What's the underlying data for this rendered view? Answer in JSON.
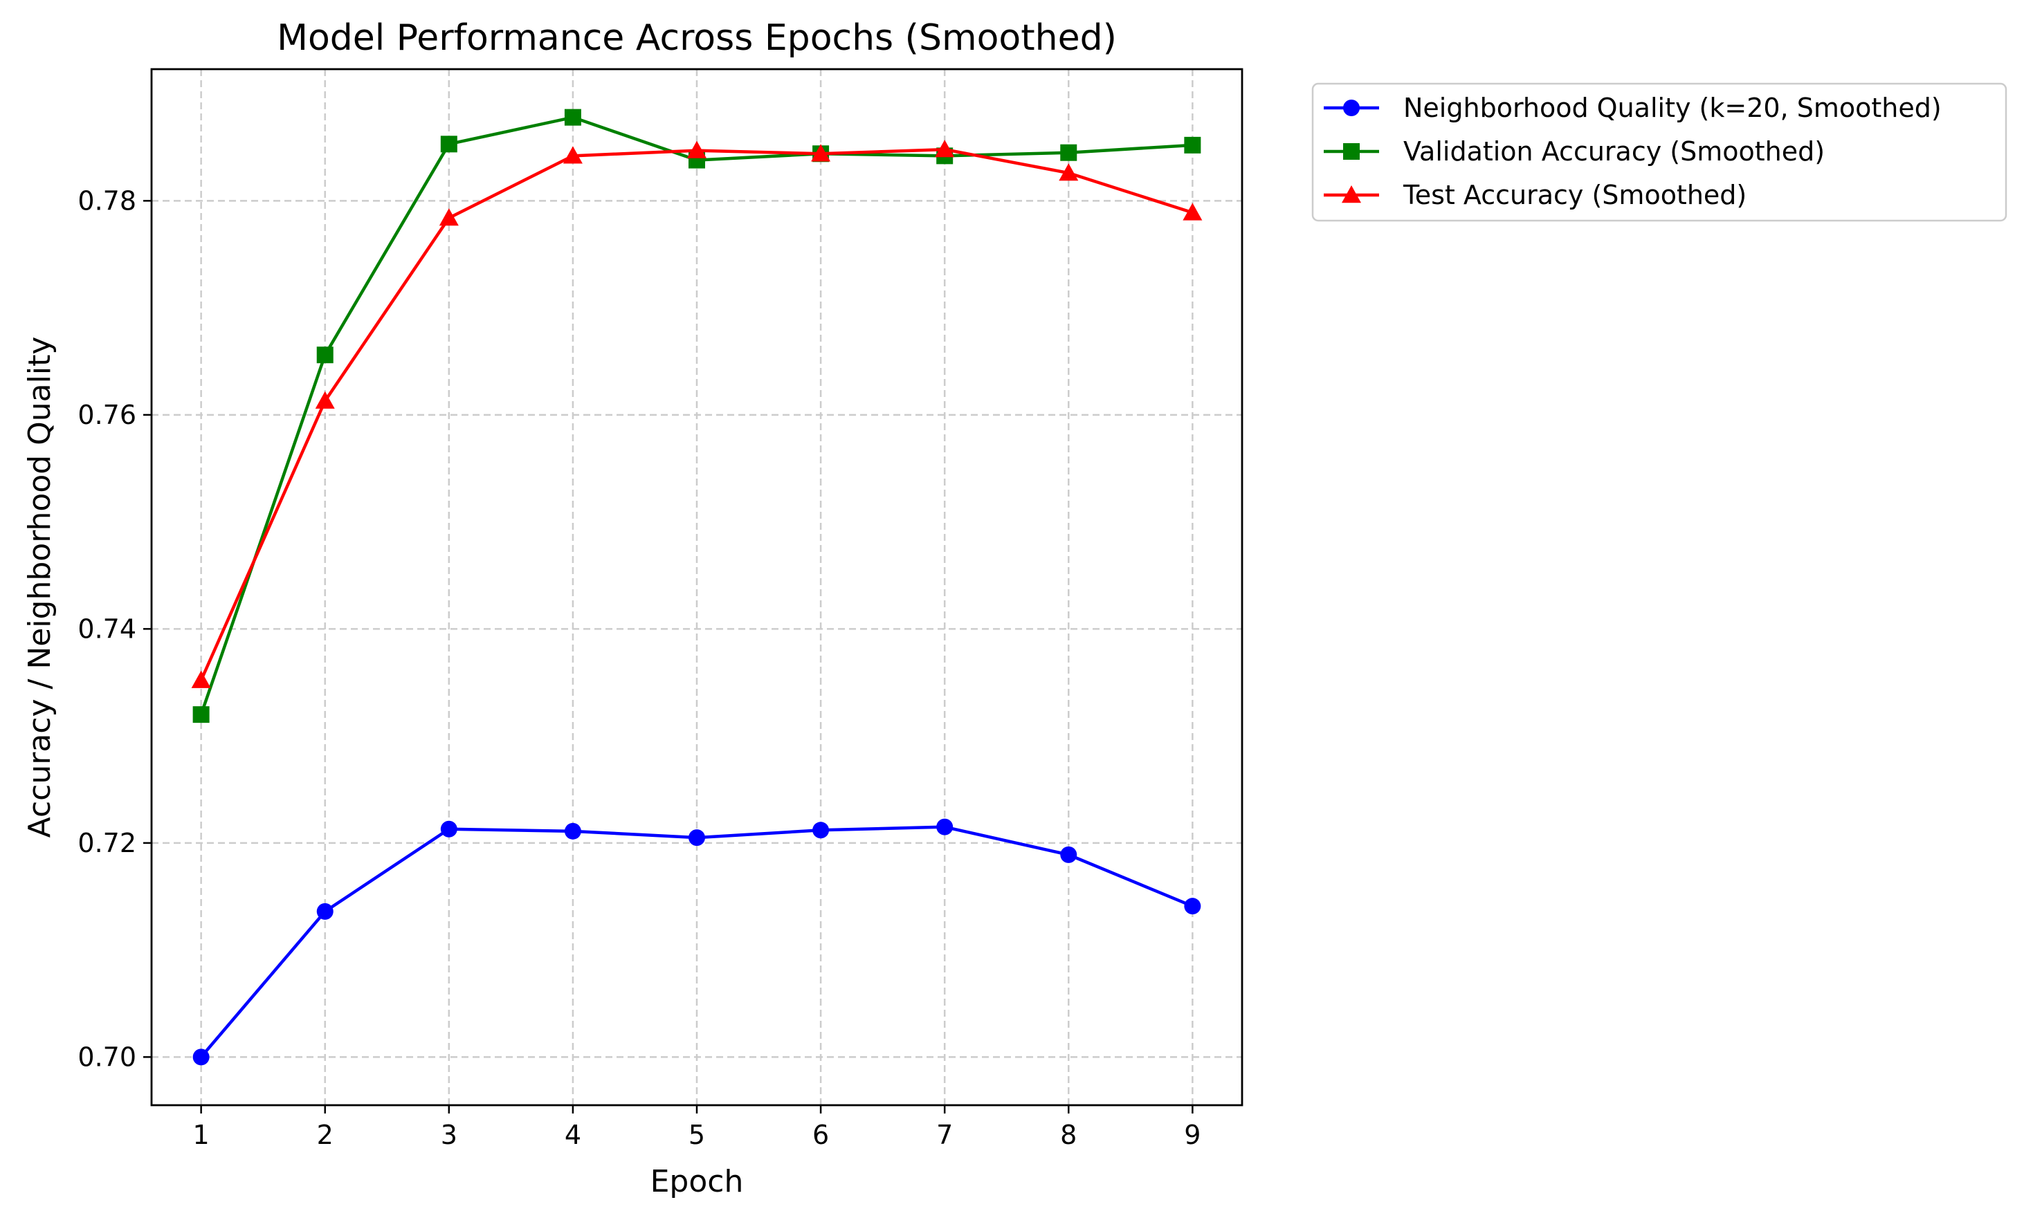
{
  "chart_data": {
    "type": "line",
    "title": "Model Performance Across Epochs (Smoothed)",
    "xlabel": "Epoch",
    "ylabel": "Accuracy / Neighborhood Quality",
    "x": [
      1,
      2,
      3,
      4,
      5,
      6,
      7,
      8,
      9
    ],
    "x_ticks": [
      "1",
      "2",
      "3",
      "4",
      "5",
      "6",
      "7",
      "8",
      "9"
    ],
    "xlim": [
      0.6,
      9.4
    ],
    "ylim": [
      0.6955,
      0.7923
    ],
    "y_ticks": [
      0.7,
      0.72,
      0.74,
      0.76,
      0.78
    ],
    "y_tick_labels": [
      "0.70",
      "0.72",
      "0.74",
      "0.76",
      "0.78"
    ],
    "grid": true,
    "legend_position": "outside-top-right",
    "series": [
      {
        "name": "Neighborhood Quality (k=20, Smoothed)",
        "color": "#0000ff",
        "marker": "circle",
        "values": [
          0.7,
          0.7136,
          0.7213,
          0.7211,
          0.7205,
          0.7212,
          0.7215,
          0.7189,
          0.7141
        ]
      },
      {
        "name": "Validation Accuracy (Smoothed)",
        "color": "#008000",
        "marker": "square",
        "values": [
          0.732,
          0.7656,
          0.7853,
          0.7878,
          0.7838,
          0.7844,
          0.7842,
          0.7845,
          0.7852
        ]
      },
      {
        "name": "Test Accuracy (Smoothed)",
        "color": "#ff0000",
        "marker": "triangle",
        "values": [
          0.7352,
          0.7613,
          0.7784,
          0.7842,
          0.7847,
          0.7844,
          0.7848,
          0.7826,
          0.7789
        ]
      }
    ]
  }
}
